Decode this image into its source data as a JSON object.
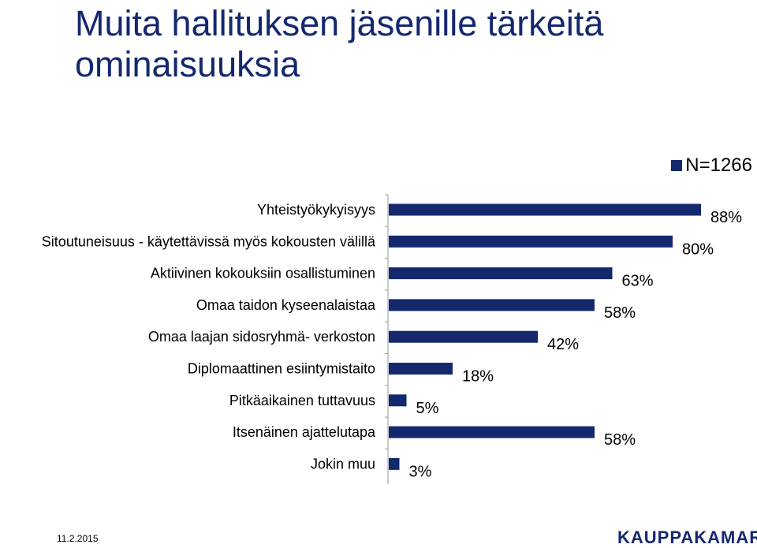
{
  "title": "Muita hallituksen jäsenille tärkeitä ominaisuuksia",
  "legend": {
    "label": "N=1266",
    "color": "#14286e"
  },
  "footer": {
    "date": "11.2.2015",
    "logo": "KAUPPAKAMARI"
  },
  "chart_data": {
    "type": "bar",
    "orientation": "horizontal",
    "categories": [
      "Yhteistyökykyisyys",
      "Sitoutuneisuus - käytettävissä myös kokousten välillä",
      "Aktiivinen kokouksiin osallistuminen",
      "Omaa taidon kyseenalaistaa",
      "Omaa laajan sidosryhmä- verkoston",
      "Diplomaattinen esiintymistaito",
      "Pitkäaikainen tuttavuus",
      "Itsenäinen ajattelutapa",
      "Jokin muu"
    ],
    "values": [
      88,
      80,
      63,
      58,
      42,
      18,
      5,
      58,
      3
    ],
    "value_labels": [
      "88%",
      "80%",
      "63%",
      "58%",
      "42%",
      "18%",
      "5%",
      "58%",
      "3%"
    ],
    "series": [
      {
        "name": "N=1266",
        "color": "#14286e"
      }
    ],
    "xlim": [
      0,
      100
    ],
    "grid": false,
    "legend_position": "top-right"
  }
}
